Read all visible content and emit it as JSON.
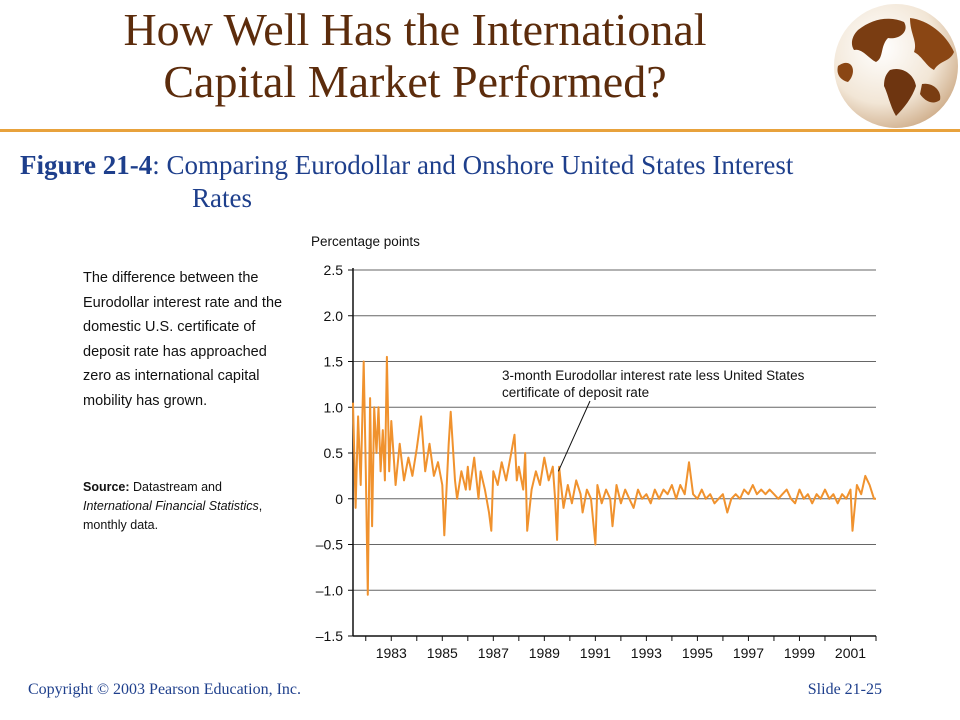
{
  "slide": {
    "title_line1": "How Well Has the International",
    "title_line2": "Capital Market Performed?",
    "figure_label": "Figure 21-4",
    "figure_separator": ": ",
    "figure_title_line1": "Comparing Eurodollar and Onshore United States Interest",
    "figure_title_line2": "Rates",
    "note": "The difference between the Eurodollar interest rate and the domestic U.S. certificate of deposit rate has approached zero as international capital mobility has grown.",
    "source_label": "Source:",
    "source_text_1": " Datastream and ",
    "source_italic": "International Financial Statistics",
    "source_text_2": ", monthly data.",
    "footer_copyright": "Copyright © 2003 Pearson Education, Inc.",
    "footer_slide": "Slide 21-25",
    "accent_color": "#e8a23c",
    "title_color": "#5c2c0c",
    "caption_color": "#1e3f8c",
    "globe_icon": "globe-icon"
  },
  "chart_data": {
    "type": "line",
    "ylabel": "Percentage points",
    "xlabel": "",
    "title": "",
    "ylim": [
      -1.5,
      2.5
    ],
    "yticks": [
      2.5,
      2.0,
      1.5,
      1.0,
      0.5,
      0,
      -0.5,
      -1.0,
      -1.5
    ],
    "ytick_labels": [
      "2.5",
      "2.0",
      "1.5",
      "1.0",
      "0.5",
      "0",
      "–0.5",
      "–1.0",
      "–1.5"
    ],
    "xlim": [
      1981.5,
      2002.0
    ],
    "xticks": [
      1983,
      1985,
      1987,
      1989,
      1991,
      1993,
      1995,
      1997,
      1999,
      2001
    ],
    "xtick_labels": [
      "1983",
      "1985",
      "1987",
      "1989",
      "1991",
      "1993",
      "1995",
      "1997",
      "1999",
      "2001"
    ],
    "grid": true,
    "line_color": "#f0922e",
    "annotation": {
      "line1": "3-month Eurodollar interest rate less United States",
      "line2": "certificate of deposit rate",
      "point": [
        1989.55,
        0.3
      ]
    },
    "series": [
      {
        "values": [
          [
            1981.5,
            1.05
          ],
          [
            1981.6,
            -0.1
          ],
          [
            1981.7,
            0.9
          ],
          [
            1981.8,
            0.15
          ],
          [
            1981.92,
            1.5
          ],
          [
            1982.0,
            0.3
          ],
          [
            1982.08,
            -1.05
          ],
          [
            1982.17,
            1.1
          ],
          [
            1982.25,
            -0.3
          ],
          [
            1982.33,
            1.0
          ],
          [
            1982.42,
            0.5
          ],
          [
            1982.5,
            1.0
          ],
          [
            1982.58,
            0.3
          ],
          [
            1982.67,
            0.75
          ],
          [
            1982.75,
            0.2
          ],
          [
            1982.83,
            1.55
          ],
          [
            1982.92,
            0.3
          ],
          [
            1983.0,
            0.85
          ],
          [
            1983.17,
            0.15
          ],
          [
            1983.33,
            0.6
          ],
          [
            1983.5,
            0.2
          ],
          [
            1983.67,
            0.45
          ],
          [
            1983.83,
            0.25
          ],
          [
            1984.0,
            0.55
          ],
          [
            1984.17,
            0.9
          ],
          [
            1984.33,
            0.3
          ],
          [
            1984.5,
            0.6
          ],
          [
            1984.67,
            0.25
          ],
          [
            1984.83,
            0.4
          ],
          [
            1985.0,
            0.15
          ],
          [
            1985.08,
            -0.4
          ],
          [
            1985.25,
            0.6
          ],
          [
            1985.33,
            0.95
          ],
          [
            1985.5,
            0.2
          ],
          [
            1985.58,
            0.0
          ],
          [
            1985.75,
            0.3
          ],
          [
            1985.92,
            0.1
          ],
          [
            1986.0,
            0.35
          ],
          [
            1986.08,
            0.1
          ],
          [
            1986.25,
            0.45
          ],
          [
            1986.42,
            0.0
          ],
          [
            1986.5,
            0.3
          ],
          [
            1986.67,
            0.1
          ],
          [
            1986.83,
            -0.15
          ],
          [
            1986.92,
            -0.35
          ],
          [
            1987.0,
            0.3
          ],
          [
            1987.17,
            0.15
          ],
          [
            1987.33,
            0.4
          ],
          [
            1987.5,
            0.2
          ],
          [
            1987.67,
            0.45
          ],
          [
            1987.83,
            0.7
          ],
          [
            1987.92,
            0.2
          ],
          [
            1988.0,
            0.35
          ],
          [
            1988.17,
            0.1
          ],
          [
            1988.25,
            0.5
          ],
          [
            1988.33,
            -0.35
          ],
          [
            1988.5,
            0.1
          ],
          [
            1988.67,
            0.3
          ],
          [
            1988.83,
            0.15
          ],
          [
            1989.0,
            0.45
          ],
          [
            1989.17,
            0.2
          ],
          [
            1989.33,
            0.35
          ],
          [
            1989.42,
            0.0
          ],
          [
            1989.5,
            -0.45
          ],
          [
            1989.58,
            0.35
          ],
          [
            1989.75,
            -0.1
          ],
          [
            1989.92,
            0.15
          ],
          [
            1990.08,
            -0.05
          ],
          [
            1990.25,
            0.2
          ],
          [
            1990.42,
            0.05
          ],
          [
            1990.5,
            -0.15
          ],
          [
            1990.67,
            0.1
          ],
          [
            1990.83,
            0.0
          ],
          [
            1991.0,
            -0.5
          ],
          [
            1991.08,
            0.15
          ],
          [
            1991.25,
            -0.05
          ],
          [
            1991.42,
            0.1
          ],
          [
            1991.58,
            0.0
          ],
          [
            1991.67,
            -0.3
          ],
          [
            1991.83,
            0.15
          ],
          [
            1992.0,
            -0.05
          ],
          [
            1992.17,
            0.1
          ],
          [
            1992.33,
            0.0
          ],
          [
            1992.5,
            -0.1
          ],
          [
            1992.67,
            0.1
          ],
          [
            1992.83,
            0.0
          ],
          [
            1993.0,
            0.05
          ],
          [
            1993.17,
            -0.05
          ],
          [
            1993.33,
            0.1
          ],
          [
            1993.5,
            0.0
          ],
          [
            1993.67,
            0.1
          ],
          [
            1993.83,
            0.05
          ],
          [
            1994.0,
            0.15
          ],
          [
            1994.17,
            0.0
          ],
          [
            1994.33,
            0.15
          ],
          [
            1994.5,
            0.05
          ],
          [
            1994.67,
            0.4
          ],
          [
            1994.83,
            0.05
          ],
          [
            1995.0,
            0.0
          ],
          [
            1995.17,
            0.1
          ],
          [
            1995.33,
            0.0
          ],
          [
            1995.5,
            0.05
          ],
          [
            1995.67,
            -0.05
          ],
          [
            1995.83,
            0.0
          ],
          [
            1996.0,
            0.05
          ],
          [
            1996.17,
            -0.15
          ],
          [
            1996.33,
            0.0
          ],
          [
            1996.5,
            0.05
          ],
          [
            1996.67,
            0.0
          ],
          [
            1996.83,
            0.1
          ],
          [
            1997.0,
            0.05
          ],
          [
            1997.17,
            0.15
          ],
          [
            1997.33,
            0.05
          ],
          [
            1997.5,
            0.1
          ],
          [
            1997.67,
            0.05
          ],
          [
            1997.83,
            0.1
          ],
          [
            1998.0,
            0.05
          ],
          [
            1998.17,
            0.0
          ],
          [
            1998.33,
            0.05
          ],
          [
            1998.5,
            0.1
          ],
          [
            1998.67,
            0.0
          ],
          [
            1998.83,
            -0.05
          ],
          [
            1999.0,
            0.1
          ],
          [
            1999.17,
            0.0
          ],
          [
            1999.33,
            0.05
          ],
          [
            1999.5,
            -0.05
          ],
          [
            1999.67,
            0.05
          ],
          [
            1999.83,
            0.0
          ],
          [
            2000.0,
            0.1
          ],
          [
            2000.17,
            0.0
          ],
          [
            2000.33,
            0.05
          ],
          [
            2000.5,
            -0.05
          ],
          [
            2000.67,
            0.05
          ],
          [
            2000.83,
            0.0
          ],
          [
            2001.0,
            0.1
          ],
          [
            2001.08,
            -0.35
          ],
          [
            2001.25,
            0.15
          ],
          [
            2001.42,
            0.05
          ],
          [
            2001.58,
            0.25
          ],
          [
            2001.75,
            0.15
          ],
          [
            2001.92,
            0.0
          ],
          [
            2002.0,
            0.0
          ]
        ]
      }
    ]
  }
}
